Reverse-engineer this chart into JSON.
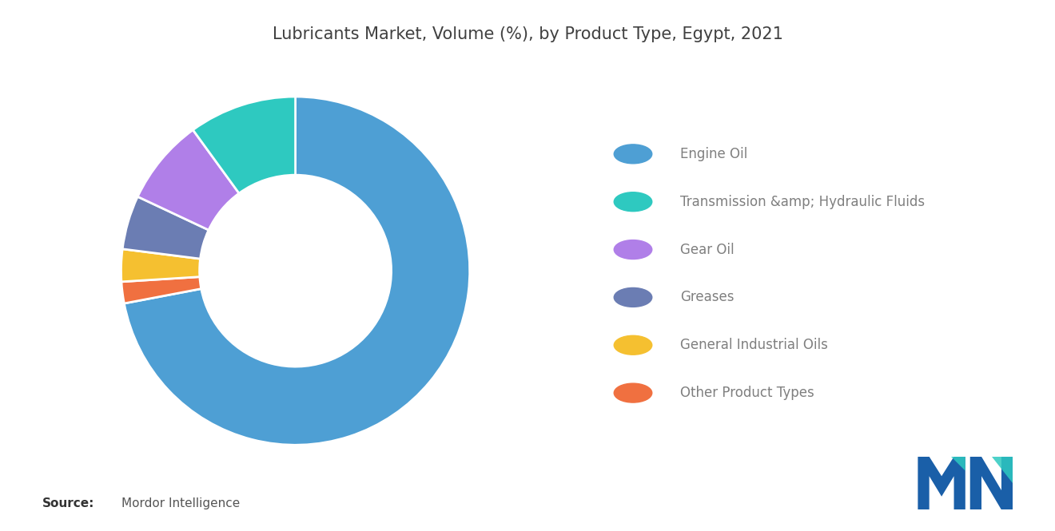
{
  "title": "Lubricants Market, Volume (%), by Product Type, Egypt, 2021",
  "title_fontsize": 15,
  "labels": [
    "Engine Oil",
    "Transmission &amp; Hydraulic Fluids",
    "Gear Oil",
    "Greases",
    "General Industrial Oils",
    "Other Product Types"
  ],
  "values": [
    72,
    10,
    8,
    5,
    3,
    2
  ],
  "colors": [
    "#4E9FD4",
    "#2EC9C0",
    "#B07FE8",
    "#6B7DB3",
    "#F5C030",
    "#F07040"
  ],
  "background_color": "#FFFFFF",
  "source_bold": "Source:",
  "source_text": "  Mordor Intelligence",
  "source_fontsize": 11,
  "wedge_edge_color": "#FFFFFF",
  "wedge_linewidth": 2.0,
  "donut_width": 0.45,
  "startangle": 90,
  "legend_fontsize": 12,
  "legend_label_color": "#7F7F7F",
  "title_color": "#404040"
}
